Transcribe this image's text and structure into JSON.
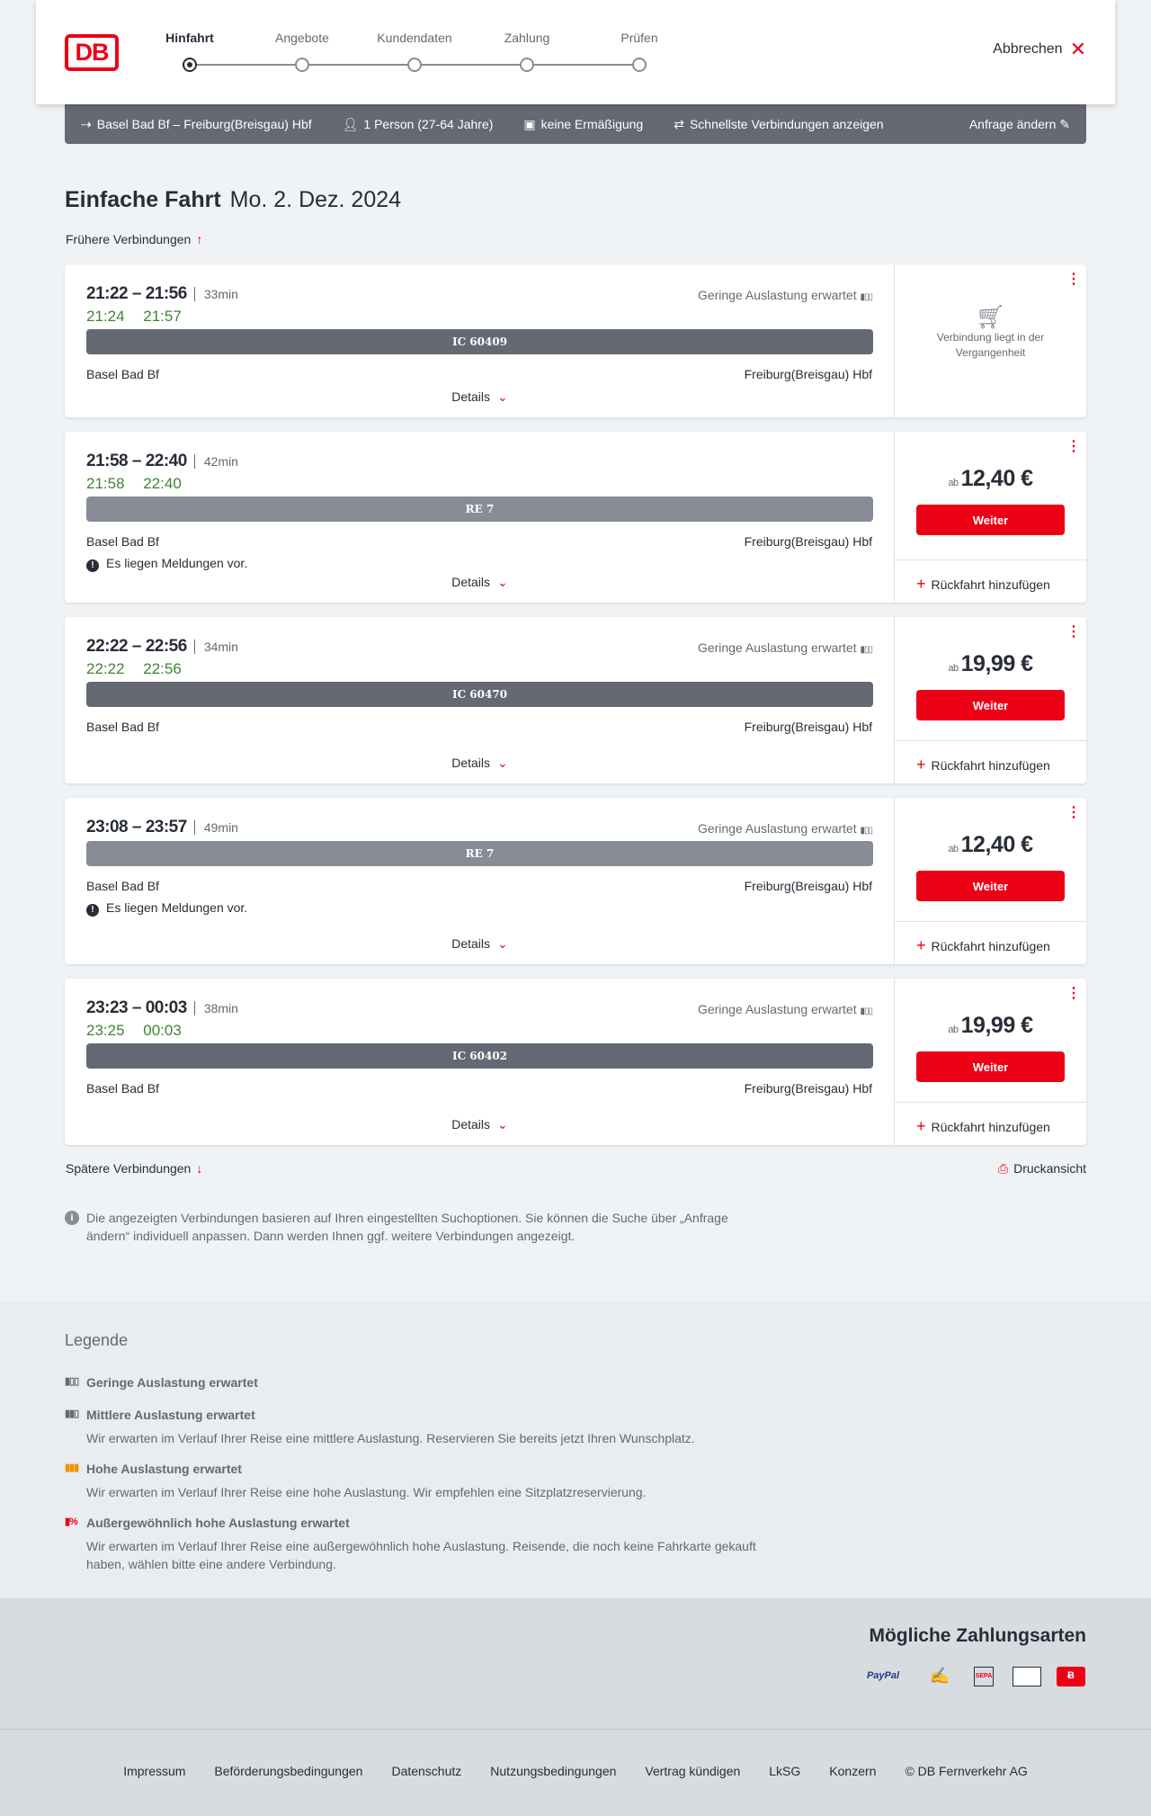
{
  "header": {
    "logo": "DB",
    "steps": [
      "Hinfahrt",
      "Angebote",
      "Kundendaten",
      "Zahlung",
      "Prüfen"
    ],
    "active_step": 0,
    "cancel": "Abbrechen"
  },
  "summary": {
    "route": "Basel Bad Bf – Freiburg(Breisgau) Hbf",
    "passengers": "1 Person (27-64 Jahre)",
    "discount": "keine Ermäßigung",
    "filter": "Schnellste Verbindungen anzeigen",
    "edit": "Anfrage ändern"
  },
  "page": {
    "title": "Einfache Fahrt",
    "date": "Mo. 2. Dez. 2024",
    "earlier": "Frühere Verbindungen",
    "later": "Spätere Verbindungen",
    "print": "Druckansicht",
    "info": "Die angezeigten Verbindungen basieren auf Ihren eingestellten Suchoptionen. Sie können die Suche über „Anfrage ändern“ individuell anpassen. Dann werden Ihnen ggf. weitere Verbindungen angezeigt."
  },
  "labels": {
    "details": "Details",
    "weiter": "Weiter",
    "return": "Rückfahrt hinzufügen",
    "ab": "ab",
    "past": "Verbindung liegt in der Vergangenheit"
  },
  "connections": [
    {
      "times": "21:22 – 21:56",
      "duration": "33min",
      "realtime": "21:24 21:57",
      "load": "Geringe Auslastung erwartet",
      "train": "IC 60409",
      "train_color": "#646973",
      "from": "Basel Bad Bf",
      "to": "Freiburg(Breisgau) Hbf",
      "message": "",
      "price": "",
      "past": true
    },
    {
      "times": "21:58 – 22:40",
      "duration": "42min",
      "realtime": "21:58 22:40",
      "load": "",
      "train": "RE 7",
      "train_color": "#878c96",
      "from": "Basel Bad Bf",
      "to": "Freiburg(Breisgau) Hbf",
      "message": "Es liegen Meldungen vor.",
      "price": "12,40 €",
      "past": false
    },
    {
      "times": "22:22 – 22:56",
      "duration": "34min",
      "realtime": "22:22 22:56",
      "load": "Geringe Auslastung erwartet",
      "train": "IC 60470",
      "train_color": "#646973",
      "from": "Basel Bad Bf",
      "to": "Freiburg(Breisgau) Hbf",
      "message": "",
      "price": "19,99 €",
      "past": false
    },
    {
      "times": "23:08 – 23:57",
      "duration": "49min",
      "realtime": "",
      "load": "Geringe Auslastung erwartet",
      "train": "RE 7",
      "train_color": "#878c96",
      "from": "Basel Bad Bf",
      "to": "Freiburg(Breisgau) Hbf",
      "message": "Es liegen Meldungen vor.",
      "price": "12,40 €",
      "past": false
    },
    {
      "times": "23:23 – 00:03",
      "duration": "38min",
      "realtime": "23:25 00:03",
      "load": "Geringe Auslastung erwartet",
      "train": "IC 60402",
      "train_color": "#646973",
      "from": "Basel Bad Bf",
      "to": "Freiburg(Breisgau) Hbf",
      "message": "",
      "price": "19,99 €",
      "past": false
    }
  ],
  "legend": {
    "title": "Legende",
    "items": [
      {
        "title": "Geringe Auslastung erwartet",
        "text": "",
        "color": "#646973"
      },
      {
        "title": "Mittlere Auslastung erwartet",
        "text": "Wir erwarten im Verlauf Ihrer Reise eine mittlere Auslastung. Reservieren Sie bereits jetzt Ihren Wunschplatz.",
        "color": "#646973"
      },
      {
        "title": "Hohe Auslastung erwartet",
        "text": "Wir erwarten im Verlauf Ihrer Reise eine hohe Auslastung. Wir empfehlen eine Sitzplatzreservierung.",
        "color": "#f39200"
      },
      {
        "title": "Außergewöhnlich hohe Auslastung erwartet",
        "text": "Wir erwarten im Verlauf Ihrer Reise eine außergewöhnlich hohe Auslastung. Reisende, die noch keine Fahrkarte gekauft haben, wählen bitte eine andere Verbindung.",
        "color": "#ec0016"
      }
    ]
  },
  "payment": {
    "title": "Mögliche Zahlungsarten",
    "methods": [
      "PayPal",
      "Lastschrift",
      "SEPA",
      "Apple Pay",
      "Bahn-Bonus"
    ]
  },
  "footer": {
    "links": [
      "Impressum",
      "Beförderungsbedingungen",
      "Datenschutz",
      "Nutzungsbedingungen",
      "Vertrag kündigen",
      "LkSG",
      "Konzern",
      "© DB Fernverkehr AG"
    ]
  }
}
